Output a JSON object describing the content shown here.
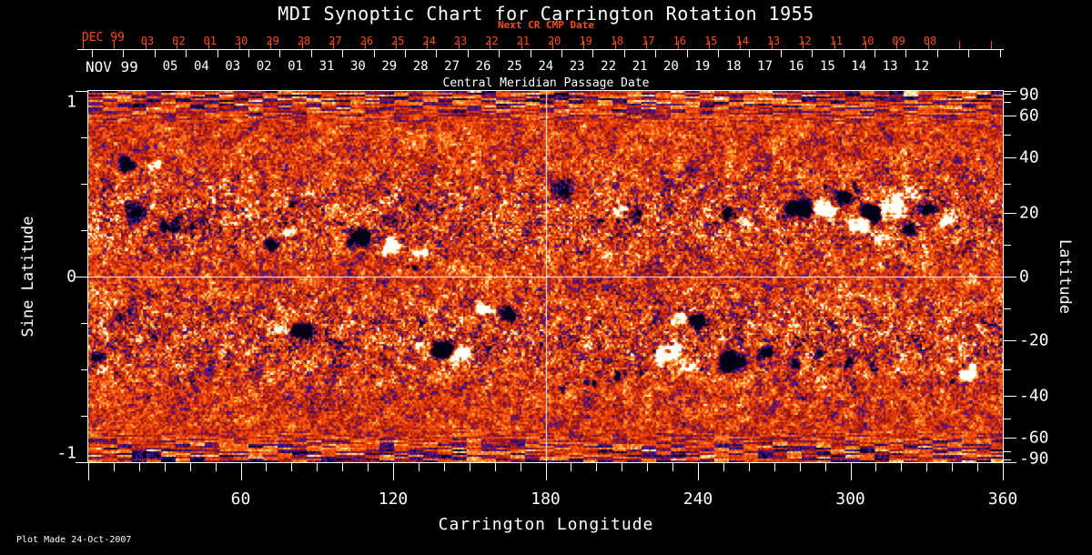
{
  "title": "MDI Synoptic Chart for Carrington Rotation 1955",
  "plot_made": "Plot Made 24-Oct-2007",
  "top_axis": {
    "label": "Next CR CMP Date",
    "month_label": "DEC 99",
    "dates": [
      "03",
      "02",
      "01",
      "30",
      "29",
      "28",
      "27",
      "26",
      "25",
      "24",
      "23",
      "22",
      "21",
      "20",
      "19",
      "18",
      "17",
      "16",
      "15",
      "14",
      "13",
      "12",
      "11",
      "10",
      "09",
      "08"
    ]
  },
  "cmp_axis": {
    "label": "Central Meridian Passage Date",
    "month_label": "NOV 99",
    "dates": [
      "05",
      "04",
      "03",
      "02",
      "01",
      "31",
      "30",
      "29",
      "28",
      "27",
      "26",
      "25",
      "24",
      "23",
      "22",
      "21",
      "20",
      "19",
      "18",
      "17",
      "16",
      "15",
      "14",
      "13",
      "12"
    ]
  },
  "x_axis": {
    "label": "Carrington Longitude",
    "major_ticks": [
      60,
      120,
      180,
      240,
      300,
      360
    ],
    "minor_step_deg": 10,
    "range": [
      0,
      360
    ]
  },
  "y_left": {
    "label": "Sine Latitude",
    "labeled_ticks": [
      1,
      0,
      -1
    ],
    "minor_step": 0.25,
    "range": [
      -1,
      1
    ]
  },
  "y_right": {
    "label": "Latitude",
    "labeled_ticks": [
      90,
      60,
      40,
      20,
      0,
      -20,
      -40,
      -60,
      -90
    ],
    "minor_ticks": [
      80,
      70,
      50,
      30,
      10,
      -10,
      -30,
      -50,
      -70,
      -80
    ]
  },
  "colors": {
    "background": "#000000",
    "axis": "#ffffff",
    "top_axis_red": "#ff4a14",
    "reference_line": "#ffffff"
  },
  "chart_data": {
    "type": "heatmap",
    "title": "MDI Synoptic Chart for Carrington Rotation 1955",
    "xlabel": "Carrington Longitude",
    "ylabel_left": "Sine Latitude",
    "ylabel_right": "Latitude",
    "x_range": [
      0,
      360
    ],
    "y_range": [
      -1,
      1
    ],
    "description": "Full-rotation solar magnetogram synoptic map: speckled orange/red quiet-Sun field with bipolar active regions (white = positive polarity, black/blue = negative polarity) concentrated in two latitude bands near +/-20 degrees; horizontally streaked darker field near both poles.",
    "reference_lines": {
      "vertical_longitude": 180,
      "horizontal_sine_latitude": 0
    },
    "palette_stops": [
      [
        0.0,
        2,
        0,
        20
      ],
      [
        0.08,
        10,
        6,
        60
      ],
      [
        0.16,
        40,
        20,
        150
      ],
      [
        0.24,
        95,
        20,
        160
      ],
      [
        0.3,
        125,
        16,
        60
      ],
      [
        0.36,
        155,
        22,
        10
      ],
      [
        0.46,
        200,
        40,
        6
      ],
      [
        0.56,
        230,
        62,
        10
      ],
      [
        0.66,
        248,
        84,
        18
      ],
      [
        0.76,
        255,
        120,
        30
      ],
      [
        0.84,
        255,
        170,
        50
      ],
      [
        0.9,
        255,
        215,
        100
      ],
      [
        0.95,
        255,
        240,
        190
      ],
      [
        1.0,
        255,
        255,
        250
      ]
    ],
    "active_region_fields": [
      "longitude_deg",
      "sine_latitude",
      "radius_px",
      "polarity",
      "strength"
    ],
    "active_regions": [
      [
        15.4,
        0.61,
        10,
        -1,
        0.8
      ],
      [
        25.1,
        0.59,
        9,
        1,
        0.85
      ],
      [
        19,
        0.35,
        14,
        -1,
        0.3
      ],
      [
        31.5,
        0.28,
        11,
        -1,
        0.55
      ],
      [
        40.5,
        0.25,
        8,
        -1,
        0.45
      ],
      [
        7.5,
        0.49,
        10,
        -1,
        0.3
      ],
      [
        56.6,
        0.75,
        8,
        -1,
        0.22
      ],
      [
        77.4,
        0.24,
        8,
        1,
        0.7
      ],
      [
        72.3,
        0.17,
        9,
        -1,
        0.75
      ],
      [
        86.3,
        0.14,
        6,
        1,
        0.5
      ],
      [
        105.7,
        0.2,
        13,
        -1,
        0.85
      ],
      [
        119.3,
        0.16,
        12,
        1,
        0.8
      ],
      [
        130.7,
        0.13,
        9,
        1,
        0.6
      ],
      [
        127.2,
        0.06,
        7,
        -1,
        0.5
      ],
      [
        119,
        0.31,
        11,
        -1,
        0.3
      ],
      [
        155.8,
        -0.17,
        10,
        1,
        0.8
      ],
      [
        164.4,
        -0.2,
        10,
        -1,
        0.8
      ],
      [
        76.3,
        -0.27,
        9,
        1,
        0.75
      ],
      [
        84.2,
        -0.29,
        11,
        -1,
        0.8
      ],
      [
        98.5,
        -0.35,
        7,
        -1,
        0.4
      ],
      [
        138.6,
        -0.39,
        13,
        -1,
        0.85
      ],
      [
        146.2,
        -0.43,
        11,
        1,
        0.8
      ],
      [
        131.1,
        -0.36,
        7,
        1,
        0.5
      ],
      [
        186.6,
        0.47,
        16,
        -1,
        0.25
      ],
      [
        237,
        0.58,
        9,
        -1,
        0.2
      ],
      [
        268,
        0.63,
        8,
        -1,
        0.2
      ],
      [
        209.5,
        0.35,
        8,
        1,
        0.7
      ],
      [
        215.2,
        0.33,
        7,
        -1,
        0.6
      ],
      [
        251.8,
        0.34,
        10,
        -1,
        0.75
      ],
      [
        258.2,
        0.3,
        7,
        1,
        0.6
      ],
      [
        279.7,
        0.38,
        13,
        -1,
        0.85
      ],
      [
        289,
        0.36,
        12,
        1,
        0.9
      ],
      [
        296.9,
        0.44,
        10,
        -1,
        0.7
      ],
      [
        303,
        0.28,
        11,
        1,
        0.85
      ],
      [
        308.4,
        0.33,
        12,
        -1,
        0.9
      ],
      [
        315.5,
        0.38,
        13,
        1,
        0.9
      ],
      [
        322.7,
        0.26,
        9,
        -1,
        0.7
      ],
      [
        324.5,
        0.45,
        9,
        1,
        0.7
      ],
      [
        331.3,
        0.35,
        9,
        -1,
        0.7
      ],
      [
        337,
        0.3,
        9,
        1,
        0.7
      ],
      [
        302.6,
        0.48,
        7,
        -1,
        0.5
      ],
      [
        309.8,
        0.21,
        8,
        1,
        0.6
      ],
      [
        232.1,
        -0.23,
        9,
        1,
        0.8
      ],
      [
        239.6,
        -0.24,
        10,
        -1,
        0.8
      ],
      [
        228.5,
        -0.42,
        14,
        1,
        0.4
      ],
      [
        236,
        -0.47,
        10,
        1,
        0.45
      ],
      [
        253.6,
        -0.46,
        15,
        -1,
        0.8
      ],
      [
        266.1,
        -0.41,
        9,
        -1,
        0.6
      ],
      [
        277.6,
        -0.46,
        8,
        -1,
        0.55
      ],
      [
        287.6,
        -0.42,
        7,
        -1,
        0.5
      ],
      [
        300.1,
        -0.47,
        8,
        -1,
        0.5
      ],
      [
        309.8,
        -0.49,
        7,
        -1,
        0.45
      ],
      [
        347,
        -0.5,
        11,
        1,
        0.85
      ],
      [
        340.6,
        -0.57,
        6,
        -1,
        0.5
      ],
      [
        187.3,
        -0.61,
        6,
        -1,
        0.45
      ],
      [
        198,
        -0.57,
        7,
        -1,
        0.5
      ],
      [
        208.8,
        -0.53,
        7,
        -1,
        0.5
      ],
      [
        218,
        -0.49,
        8,
        -1,
        0.45
      ],
      [
        5.4,
        -0.5,
        6,
        1,
        0.6
      ],
      [
        3.9,
        -0.43,
        7,
        -1,
        0.55
      ]
    ]
  }
}
